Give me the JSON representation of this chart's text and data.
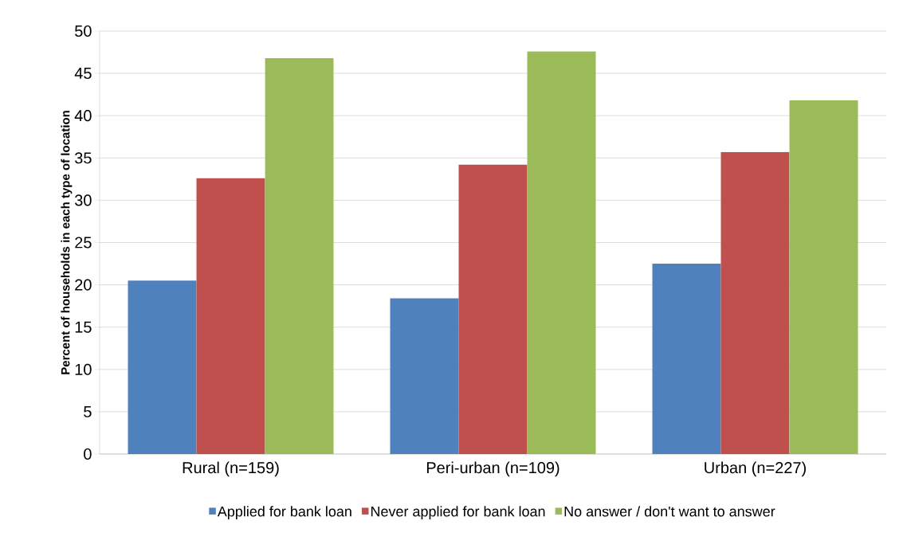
{
  "chart_data": {
    "type": "bar",
    "ylabel": "Percent of households in each type of location",
    "categories": [
      "Rural (n=159)",
      "Peri-urban (n=109)",
      "Urban (n=227)"
    ],
    "series": [
      {
        "name": "Applied for bank loan",
        "color": "#4f81bd",
        "values": [
          20.5,
          18.4,
          22.5
        ]
      },
      {
        "name": "Never applied for bank loan",
        "color": "#c0504d",
        "values": [
          32.6,
          34.2,
          35.7
        ]
      },
      {
        "name": "No answer / don't want to answer",
        "color": "#9bbb59",
        "values": [
          46.8,
          47.6,
          41.8
        ]
      }
    ],
    "ylim": [
      0,
      50
    ],
    "yticks": [
      0,
      5,
      10,
      15,
      20,
      25,
      30,
      35,
      40,
      45,
      50
    ],
    "grid": "y",
    "legend": "bottom"
  }
}
